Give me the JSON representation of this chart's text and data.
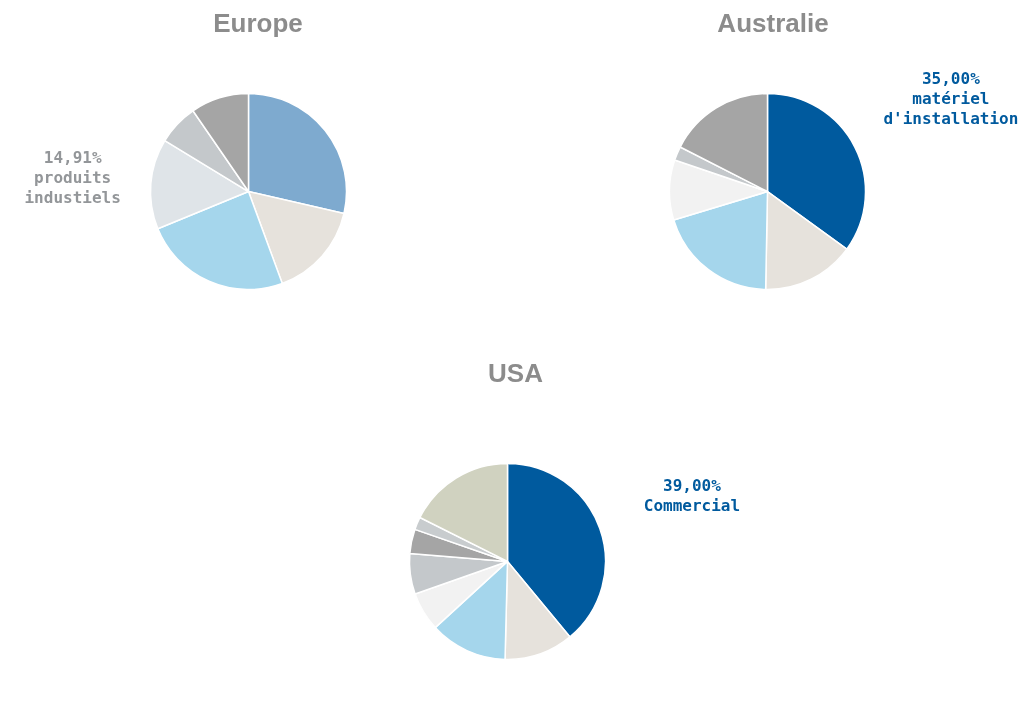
{
  "chart_data": [
    {
      "type": "pie",
      "title": "Europe",
      "categories": [
        null,
        null,
        null,
        "produits industiels",
        null,
        null
      ],
      "values": [
        28.6,
        15.8,
        24.4,
        14.91,
        6.7,
        9.59
      ],
      "colors": [
        "#7eaacf",
        "#e6e2dc",
        "#a5d6ec",
        "#dfe4e8",
        "#c4c8cb",
        "#a5a5a5"
      ],
      "value_labels": [
        null,
        null,
        null,
        "14,91%",
        null,
        null
      ]
    },
    {
      "type": "pie",
      "title": "Australie",
      "categories": [
        "matériel d'installation",
        null,
        null,
        null,
        null,
        null
      ],
      "values": [
        35.0,
        15.3,
        20.0,
        9.9,
        2.3,
        17.5
      ],
      "colors": [
        "#005a9e",
        "#e6e2dc",
        "#a5d6ec",
        "#f2f2f2",
        "#c4c8cb",
        "#a5a5a5"
      ],
      "value_labels": [
        "35,00%",
        null,
        null,
        null,
        null,
        null
      ]
    },
    {
      "type": "pie",
      "title": "USA",
      "categories": [
        "Commercial",
        null,
        null,
        null,
        null,
        null,
        null,
        null
      ],
      "values": [
        39.0,
        11.4,
        12.8,
        6.4,
        6.7,
        4.0,
        2.1,
        17.6
      ],
      "colors": [
        "#005a9e",
        "#e6e2dc",
        "#a5d6ec",
        "#f2f2f2",
        "#c4c8cb",
        "#a5a5a5",
        "#c8ccce",
        "#d0d2c0"
      ],
      "value_labels": [
        "39,00%",
        null,
        null,
        null,
        null,
        null,
        null,
        null
      ]
    }
  ]
}
